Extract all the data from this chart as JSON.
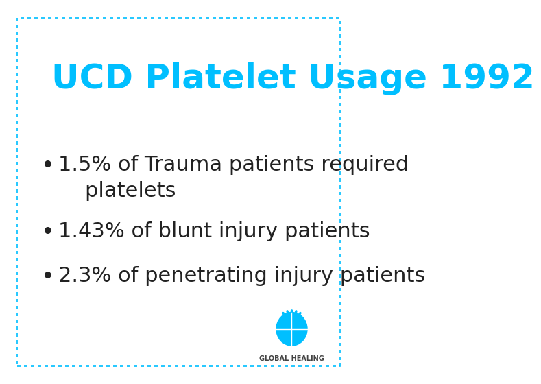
{
  "title": "UCD Platelet Usage 1992",
  "title_color": "#00BFFF",
  "title_fontsize": 36,
  "bullet_points": [
    "1.5% of Trauma patients required\n    platelets",
    "1.43% of blunt injury patients",
    "2.3% of penetrating injury patients"
  ],
  "bullet_fontsize": 22,
  "bullet_color": "#222222",
  "background_color": "#FFFFFF",
  "border_color": "#00BFFF",
  "logo_text": "GLOBAL HEALING",
  "logo_text_color": "#444444",
  "logo_text_fontsize": 7
}
